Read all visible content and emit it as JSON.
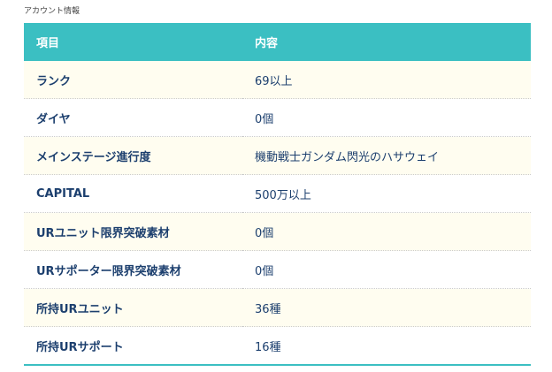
{
  "caption": "アカウント情報",
  "header": {
    "col1": "項目",
    "col2": "内容"
  },
  "rows": [
    {
      "k": "ランク",
      "v": "69以上"
    },
    {
      "k": "ダイヤ",
      "v": "0個"
    },
    {
      "k": "メインステージ進行度",
      "v": "機動戦士ガンダム閃光のハサウェイ"
    },
    {
      "k": "CAPITAL",
      "v": "500万以上"
    },
    {
      "k": "URユニット限界突破素材",
      "v": "0個"
    },
    {
      "k": "URサポーター限界突破素材",
      "v": "0個"
    },
    {
      "k": "所持URユニット",
      "v": "36種"
    },
    {
      "k": "所持URサポート",
      "v": "16種"
    }
  ],
  "colors": {
    "header": "#3bbfc2",
    "row_alt": "#fffdf0",
    "text": "#1c3f6e"
  }
}
